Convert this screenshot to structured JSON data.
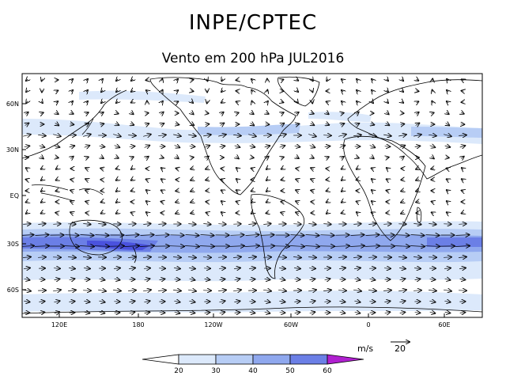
{
  "header": {
    "title": "INPE/CPTEC",
    "subtitle": "Vento em 200 hPa JUL2016"
  },
  "map": {
    "lat_labels": [
      "60N",
      "30N",
      "EQ",
      "30S",
      "60S"
    ],
    "lon_labels": [
      "120E",
      "180",
      "120W",
      "60W",
      "0",
      "60E"
    ],
    "land_color": "#000000",
    "arrow_color": "#000000"
  },
  "colorbar": {
    "units": "m/s",
    "ticks": [
      "20",
      "30",
      "40",
      "50",
      "60"
    ],
    "colors": [
      "#ffffff",
      "#dce9fb",
      "#b7cdf5",
      "#8fa8ee",
      "#6b7fe6",
      "#4a52de",
      "#b020d0"
    ]
  },
  "reference_vector": {
    "label": "20"
  }
}
